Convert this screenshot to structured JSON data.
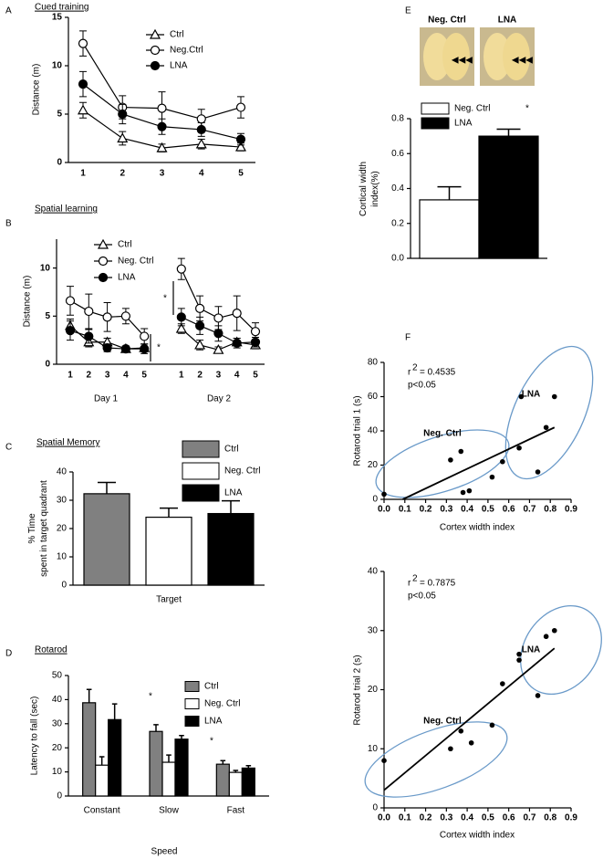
{
  "chart_data": [
    {
      "type": "line",
      "panel": "A",
      "title": "Cued training",
      "ylabel": "Distance (m)",
      "categories": [
        "1",
        "2",
        "3",
        "4",
        "5"
      ],
      "ylim": [
        0,
        15
      ],
      "yticks": [
        0,
        5,
        10,
        15
      ],
      "series": [
        {
          "name": "Ctrl",
          "marker": "triangle-open",
          "color": "#000000",
          "values": [
            5.4,
            2.5,
            1.5,
            1.9,
            1.6
          ],
          "errors": [
            0.8,
            0.7,
            0.4,
            0.5,
            0.4
          ]
        },
        {
          "name": "Neg.Ctrl",
          "marker": "circle-open",
          "color": "#000000",
          "values": [
            12.3,
            5.7,
            5.6,
            4.5,
            5.7
          ],
          "errors": [
            1.3,
            1.2,
            1.7,
            1.0,
            1.1
          ]
        },
        {
          "name": "LNA",
          "marker": "circle-filled",
          "color": "#000000",
          "values": [
            8.1,
            5.0,
            3.7,
            3.4,
            2.4
          ],
          "errors": [
            1.3,
            1.0,
            0.8,
            0.7,
            0.6
          ]
        }
      ]
    },
    {
      "type": "line",
      "panel": "B",
      "title": "Spatial learning",
      "ylabel": "Distance (m)",
      "categories": [
        "1",
        "2",
        "3",
        "4",
        "5",
        null,
        "1",
        "2",
        "3",
        "4",
        "5"
      ],
      "group_labels": [
        "Day 1",
        "Day 2"
      ],
      "ylim": [
        0,
        13
      ],
      "yticks": [
        0,
        5,
        10
      ],
      "annotations": [
        "*",
        "*"
      ],
      "series": [
        {
          "name": "Ctrl",
          "marker": "triangle-open",
          "color": "#000000",
          "values": [
            4.0,
            2.3,
            2.3,
            1.6,
            1.7,
            null,
            3.7,
            2.0,
            1.5,
            2.3,
            2.0
          ],
          "errors": [
            0.7,
            0.5,
            0.4,
            0.3,
            0.4,
            null,
            0.5,
            0.5,
            0.3,
            0.4,
            0.4
          ]
        },
        {
          "name": "Neg. Ctrl",
          "marker": "circle-open",
          "color": "#000000",
          "values": [
            6.6,
            5.5,
            4.9,
            5.0,
            2.9,
            null,
            9.9,
            5.8,
            4.8,
            5.3,
            3.4
          ],
          "errors": [
            1.5,
            1.8,
            1.5,
            0.8,
            0.8,
            null,
            1.1,
            1.3,
            1.2,
            1.8,
            0.9
          ]
        },
        {
          "name": "LNA",
          "marker": "circle-filled",
          "color": "#000000",
          "values": [
            3.5,
            2.9,
            1.7,
            1.6,
            1.6,
            null,
            4.9,
            4.0,
            3.2,
            2.2,
            2.3
          ],
          "errors": [
            1.0,
            0.7,
            0.4,
            0.3,
            0.5,
            null,
            0.9,
            0.9,
            0.8,
            0.5,
            0.5
          ]
        }
      ]
    },
    {
      "type": "bar",
      "panel": "C",
      "title": "Spatial Memory",
      "ylabel": [
        "% Time",
        "spent in target quadrant"
      ],
      "categories": [
        "Target"
      ],
      "ylim": [
        0,
        40
      ],
      "yticks": [
        0,
        10,
        20,
        30,
        40
      ],
      "series": [
        {
          "name": "Ctrl",
          "color": "#808080",
          "values": [
            32.3
          ],
          "errors": [
            4.0
          ]
        },
        {
          "name": "Neg. Ctrl",
          "color": "#ffffff",
          "values": [
            24.0
          ],
          "errors": [
            3.2
          ]
        },
        {
          "name": "LNA",
          "color": "#000000",
          "values": [
            25.3
          ],
          "errors": [
            4.5
          ]
        }
      ]
    },
    {
      "type": "bar",
      "panel": "D",
      "title": "Rotarod",
      "ylabel": [
        "Latency to fall (sec)"
      ],
      "xlabel": "Speed",
      "categories": [
        "Constant",
        "Slow",
        "Fast"
      ],
      "ylim": [
        0,
        50
      ],
      "yticks": [
        0,
        10,
        20,
        30,
        40,
        50
      ],
      "annotations": [
        "*",
        "*"
      ],
      "series": [
        {
          "name": "Ctrl",
          "color": "#808080",
          "values": [
            38.7,
            26.8,
            13.2
          ],
          "errors": [
            5.5,
            2.8,
            1.5
          ]
        },
        {
          "name": "Neg. Ctrl",
          "color": "#ffffff",
          "values": [
            12.8,
            14.0,
            9.8
          ],
          "errors": [
            3.5,
            3.0,
            0.8
          ]
        },
        {
          "name": "LNA",
          "color": "#000000",
          "values": [
            31.7,
            23.6,
            11.6
          ],
          "errors": [
            6.5,
            1.5,
            1.0
          ]
        }
      ]
    },
    {
      "type": "bar",
      "panel": "E",
      "image_labels": [
        "Neg. Ctrl",
        "LNA"
      ],
      "ylabel": [
        "Cortical width",
        "index(%)"
      ],
      "categories": [
        null
      ],
      "ylim": [
        0,
        0.8
      ],
      "yticks": [
        {
          "value": 0,
          "label": "0.0"
        },
        0.2,
        0.4,
        0.6,
        0.8
      ],
      "annotations": [
        "*"
      ],
      "series": [
        {
          "name": "Neg. Ctrl",
          "color": "#ffffff",
          "values": [
            0.335
          ],
          "errors": [
            0.075
          ]
        },
        {
          "name": "LNA",
          "color": "#000000",
          "values": [
            0.7
          ],
          "errors": [
            0.04
          ]
        }
      ]
    },
    {
      "type": "scatter",
      "panel": "F",
      "xlabel": "Cortex width index",
      "ylabel": "Rotarod trial 1 (s)",
      "xlim": [
        0,
        0.9
      ],
      "xticks": [
        {
          "value": 0,
          "label": "0.0"
        },
        0.1,
        0.2,
        0.3,
        0.4,
        0.5,
        0.6,
        0.7,
        0.8,
        0.9
      ],
      "ylim": [
        0,
        80
      ],
      "yticks": [
        0,
        20,
        40,
        60,
        80
      ],
      "color": "#000000",
      "x": [
        0.0,
        0.32,
        0.37,
        0.38,
        0.41,
        0.52,
        0.57,
        0.65,
        0.66,
        0.74,
        0.78,
        0.82
      ],
      "values": [
        3,
        23,
        28,
        4,
        5,
        13,
        22,
        30,
        60,
        16,
        42,
        60
      ],
      "fit": {
        "x": [
          0.09,
          0.82
        ],
        "y": [
          0,
          42
        ]
      },
      "stats": [
        "r",
        "2",
        "= 0.4535"
      ],
      "p_text": "p<0.05",
      "groups": [
        "Neg. Ctrl",
        "LNA"
      ],
      "group_color": "#6a9ac9"
    },
    {
      "type": "scatter",
      "xlabel": "Cortex width index",
      "ylabel": "Rotarod trial 2 (s)",
      "xlim": [
        0,
        0.9
      ],
      "xticks": [
        {
          "value": 0,
          "label": "0.0"
        },
        0.1,
        0.2,
        0.3,
        0.4,
        0.5,
        0.6,
        0.7,
        0.8,
        0.9
      ],
      "ylim": [
        0,
        40
      ],
      "yticks": [
        0,
        10,
        20,
        30,
        40
      ],
      "color": "#000000",
      "x": [
        0.0,
        0.32,
        0.37,
        0.42,
        0.52,
        0.57,
        0.65,
        0.65,
        0.74,
        0.78,
        0.82
      ],
      "values": [
        8,
        10,
        13,
        11,
        14,
        21,
        25,
        26,
        19,
        29,
        30
      ],
      "fit": {
        "x": [
          0,
          0.82
        ],
        "y": [
          3,
          27
        ]
      },
      "stats": [
        "r",
        "2",
        "= 0.7875"
      ],
      "p_text": "p<0.05",
      "groups": [
        "Neg. Ctrl",
        "LNA"
      ],
      "group_color": "#6a9ac9"
    }
  ]
}
